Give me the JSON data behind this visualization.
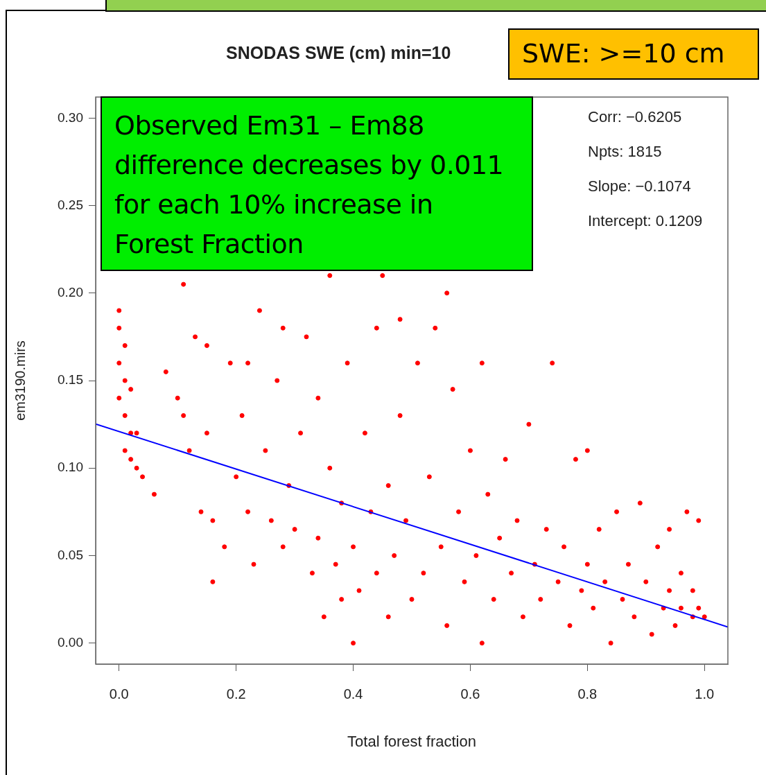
{
  "chart_data": {
    "type": "scatter",
    "title": "SNODAS SWE (cm) min=10",
    "xlabel": "Total forest fraction",
    "ylabel": "em3190.mirs",
    "xlim": [
      -0.04,
      1.04
    ],
    "xticks": [
      {
        "value": 0,
        "label": "0.0"
      },
      0.2,
      0.4,
      0.6,
      0.8,
      {
        "value": 1,
        "label": "1.0"
      }
    ],
    "ylim": [
      -0.012,
      0.312
    ],
    "yticks": [
      {
        "value": 0,
        "label": "0.00"
      },
      0.05,
      {
        "value": 0.1,
        "label": "0.10"
      },
      0.15,
      {
        "value": 0.2,
        "label": "0.20"
      },
      0.25,
      {
        "value": 0.3,
        "label": "0.30"
      }
    ],
    "grid": false,
    "marker": "circle",
    "annotations": [
      "SWE: >=10 cm",
      "Observed Em31 – Em88 difference decreases by 0.011 for each 10% increase in Forest Fraction",
      "Corr: −0.6205",
      "Npts: 1815",
      "Slope: −0.1074",
      "Intercept: 0.1209"
    ],
    "series": [
      {
        "color": "#ff0000",
        "x": [
          0.0,
          0.0,
          0.01,
          0.0,
          0.01,
          0.0,
          0.02,
          0.01,
          0.02,
          0.03,
          0.01,
          0.02,
          0.03,
          0.04,
          0.06,
          0.08,
          0.1,
          0.11,
          0.11,
          0.12,
          0.13,
          0.14,
          0.15,
          0.15,
          0.16,
          0.16,
          0.18,
          0.19,
          0.2,
          0.21,
          0.22,
          0.22,
          0.23,
          0.24,
          0.25,
          0.26,
          0.27,
          0.28,
          0.28,
          0.29,
          0.3,
          0.31,
          0.32,
          0.33,
          0.34,
          0.34,
          0.35,
          0.36,
          0.36,
          0.37,
          0.38,
          0.38,
          0.39,
          0.4,
          0.4,
          0.41,
          0.42,
          0.43,
          0.44,
          0.44,
          0.45,
          0.46,
          0.46,
          0.47,
          0.48,
          0.48,
          0.49,
          0.5,
          0.51,
          0.52,
          0.53,
          0.54,
          0.55,
          0.56,
          0.56,
          0.57,
          0.58,
          0.59,
          0.6,
          0.61,
          0.62,
          0.62,
          0.63,
          0.64,
          0.65,
          0.66,
          0.67,
          0.68,
          0.69,
          0.7,
          0.71,
          0.72,
          0.73,
          0.74,
          0.75,
          0.76,
          0.77,
          0.78,
          0.79,
          0.8,
          0.8,
          0.81,
          0.82,
          0.83,
          0.84,
          0.85,
          0.86,
          0.87,
          0.88,
          0.89,
          0.9,
          0.91,
          0.92,
          0.93,
          0.94,
          0.94,
          0.95,
          0.96,
          0.96,
          0.97,
          0.98,
          0.98,
          0.99,
          0.99,
          1.0
        ],
        "values": [
          0.19,
          0.18,
          0.17,
          0.16,
          0.15,
          0.14,
          0.145,
          0.13,
          0.12,
          0.12,
          0.11,
          0.105,
          0.1,
          0.095,
          0.085,
          0.155,
          0.14,
          0.13,
          0.205,
          0.11,
          0.175,
          0.075,
          0.17,
          0.12,
          0.07,
          0.035,
          0.055,
          0.16,
          0.095,
          0.13,
          0.16,
          0.075,
          0.045,
          0.19,
          0.11,
          0.07,
          0.15,
          0.18,
          0.055,
          0.09,
          0.065,
          0.12,
          0.175,
          0.04,
          0.14,
          0.06,
          0.015,
          0.21,
          0.1,
          0.045,
          0.08,
          0.025,
          0.16,
          0.055,
          0.0,
          0.03,
          0.12,
          0.075,
          0.18,
          0.04,
          0.21,
          0.09,
          0.015,
          0.05,
          0.13,
          0.185,
          0.07,
          0.025,
          0.16,
          0.04,
          0.095,
          0.18,
          0.055,
          0.2,
          0.01,
          0.145,
          0.075,
          0.035,
          0.11,
          0.05,
          0.16,
          0.0,
          0.085,
          0.025,
          0.06,
          0.105,
          0.04,
          0.07,
          0.015,
          0.125,
          0.045,
          0.025,
          0.065,
          0.16,
          0.035,
          0.055,
          0.01,
          0.105,
          0.03,
          0.11,
          0.045,
          0.02,
          0.065,
          0.035,
          0.0,
          0.075,
          0.025,
          0.045,
          0.015,
          0.08,
          0.035,
          0.005,
          0.055,
          0.02,
          0.03,
          0.065,
          0.01,
          0.04,
          0.02,
          0.075,
          0.015,
          0.03,
          0.07,
          0.02,
          0.015
        ]
      },
      {
        "type": "line",
        "color": "#0000ff",
        "marker": "none",
        "x": [
          -0.04,
          1.04
        ],
        "values": [
          0.1252,
          0.0092
        ]
      }
    ]
  }
}
